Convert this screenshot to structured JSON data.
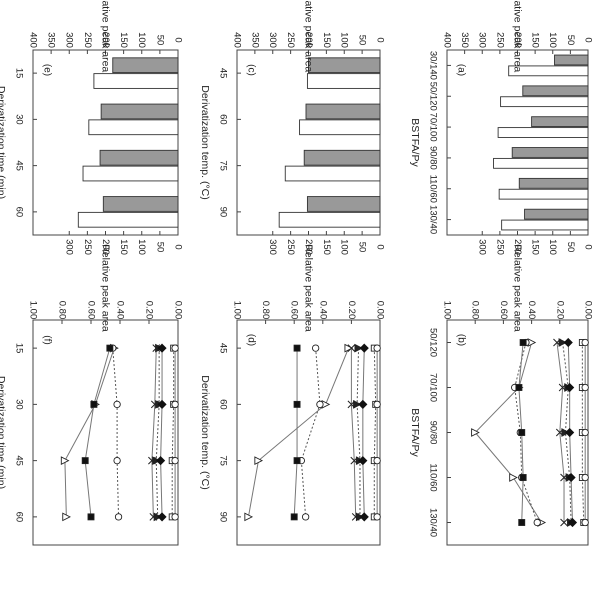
{
  "figure": {
    "note": "Six-panel figure, rendered rotated 90 degrees clockwise in the original image"
  },
  "chart_data": [
    {
      "panel": "(a)",
      "type": "bar",
      "xlabel": "BSTFA/Py",
      "ylabel": "Total relative peak area",
      "categories": [
        "30/140",
        "50/120",
        "70/100",
        "90/80",
        "110/60",
        "130/40"
      ],
      "ylim": [
        0,
        400
      ],
      "yticks": [
        0,
        50,
        100,
        150,
        200,
        250,
        300,
        350,
        400
      ],
      "series": [
        {
          "values": [
            95,
            185,
            160,
            215,
            195,
            180
          ],
          "fill": "#999999"
        },
        {
          "values": [
            225,
            248,
            255,
            268,
            252,
            245
          ],
          "fill": "#ffffff"
        }
      ]
    },
    {
      "panel": "(b)",
      "type": "line",
      "xlabel": "BSTFA/Py",
      "ylabel": "Relative peak area",
      "categories": [
        "50/120",
        "70/100",
        "90/80",
        "110/60",
        "130/40"
      ],
      "ylim": [
        0,
        1
      ],
      "yticks": [
        "0.00",
        "0.20",
        "0.40",
        "0.60",
        "0.80",
        "1.00"
      ],
      "series": [
        {
          "marker": "triangle-open",
          "dash": "none",
          "values": [
            0.4,
            0.49,
            0.8,
            0.53,
            0.33
          ]
        },
        {
          "marker": "circle-open",
          "dash": "dot",
          "values": [
            0.44,
            0.52,
            0.48,
            0.47,
            0.36
          ]
        },
        {
          "marker": "square-filled",
          "dash": "none",
          "values": [
            0.46,
            0.49,
            0.47,
            0.46,
            0.47
          ]
        },
        {
          "marker": "cross",
          "dash": "none",
          "values": [
            0.22,
            0.18,
            0.2,
            0.17,
            0.17
          ]
        },
        {
          "marker": "triangle-filled",
          "dash": "dot",
          "values": [
            0.18,
            0.14,
            0.16,
            0.13,
            0.12
          ]
        },
        {
          "marker": "diamond-filled",
          "dash": "none",
          "values": [
            0.14,
            0.13,
            0.13,
            0.12,
            0.11
          ]
        },
        {
          "marker": "square-open",
          "dash": "dot",
          "values": [
            0.04,
            0.04,
            0.04,
            0.04,
            0.03
          ]
        },
        {
          "marker": "circle-open",
          "dash": "none",
          "values": [
            0.02,
            0.02,
            0.02,
            0.02,
            0.02
          ]
        }
      ]
    },
    {
      "panel": "(c)",
      "type": "bar",
      "xlabel": "Derivatization temp. (°C)",
      "ylabel": "Total relative peak area",
      "categories": [
        "45",
        "60",
        "75",
        "90"
      ],
      "ylim": [
        0,
        400
      ],
      "yticks": [
        0,
        50,
        100,
        150,
        200,
        250,
        300,
        350,
        400
      ],
      "series": [
        {
          "values": [
            200,
            207,
            212,
            203
          ],
          "fill": "#999999"
        },
        {
          "values": [
            203,
            225,
            265,
            282
          ],
          "fill": "#ffffff"
        }
      ]
    },
    {
      "panel": "(d)",
      "type": "line",
      "xlabel": "Derivatization temp. (°C)",
      "ylabel": "Relative peak area",
      "categories": [
        "45",
        "60",
        "75",
        "90"
      ],
      "ylim": [
        0,
        1
      ],
      "yticks": [
        "0.00",
        "0.20",
        "0.40",
        "0.60",
        "0.80",
        "1.00"
      ],
      "series": [
        {
          "marker": "triangle-open",
          "dash": "none",
          "values": [
            0.22,
            0.38,
            0.85,
            0.92
          ]
        },
        {
          "marker": "circle-open",
          "dash": "dot",
          "values": [
            0.45,
            0.42,
            0.55,
            0.52
          ]
        },
        {
          "marker": "square-filled",
          "dash": "none",
          "values": [
            0.58,
            0.58,
            0.58,
            0.6
          ]
        },
        {
          "marker": "cross",
          "dash": "none",
          "values": [
            0.2,
            0.2,
            0.18,
            0.17
          ]
        },
        {
          "marker": "triangle-filled",
          "dash": "dot",
          "values": [
            0.15,
            0.16,
            0.14,
            0.14
          ]
        },
        {
          "marker": "diamond-filled",
          "dash": "none",
          "values": [
            0.11,
            0.12,
            0.12,
            0.11
          ]
        },
        {
          "marker": "square-open",
          "dash": "dot",
          "values": [
            0.04,
            0.03,
            0.04,
            0.04
          ]
        },
        {
          "marker": "circle-open",
          "dash": "none",
          "values": [
            0.02,
            0.02,
            0.02,
            0.02
          ]
        }
      ]
    },
    {
      "panel": "(e)",
      "type": "bar",
      "xlabel": "Derivatization time (min)",
      "ylabel": "Total relative peak area",
      "categories": [
        "15",
        "30",
        "45",
        "60"
      ],
      "ylim": [
        0,
        400
      ],
      "yticks": [
        0,
        50,
        100,
        150,
        200,
        250,
        300,
        350,
        400
      ],
      "series": [
        {
          "values": [
            180,
            212,
            215,
            206
          ],
          "fill": "#999999"
        },
        {
          "values": [
            232,
            246,
            262,
            275
          ],
          "fill": "#ffffff"
        }
      ]
    },
    {
      "panel": "(f)",
      "type": "line",
      "xlabel": "Derivatization time (min)",
      "ylabel": "Relative peak area",
      "categories": [
        "15",
        "30",
        "45",
        "60"
      ],
      "ylim": [
        0,
        1
      ],
      "yticks": [
        "0.00",
        "0.20",
        "0.40",
        "0.60",
        "0.80",
        "1.00"
      ],
      "series": [
        {
          "marker": "triangle-open",
          "dash": "none",
          "values": [
            0.44,
            0.57,
            0.78,
            0.77
          ]
        },
        {
          "marker": "circle-open",
          "dash": "dot",
          "values": [
            0.45,
            0.42,
            0.42,
            0.41
          ]
        },
        {
          "marker": "square-filled",
          "dash": "none",
          "values": [
            0.47,
            0.58,
            0.64,
            0.6
          ]
        },
        {
          "marker": "cross",
          "dash": "none",
          "values": [
            0.15,
            0.16,
            0.18,
            0.17
          ]
        },
        {
          "marker": "triangle-filled",
          "dash": "dot",
          "values": [
            0.13,
            0.13,
            0.15,
            0.14
          ]
        },
        {
          "marker": "diamond-filled",
          "dash": "none",
          "values": [
            0.11,
            0.11,
            0.12,
            0.11
          ]
        },
        {
          "marker": "square-open",
          "dash": "dot",
          "values": [
            0.03,
            0.03,
            0.04,
            0.04
          ]
        },
        {
          "marker": "circle-open",
          "dash": "none",
          "values": [
            0.02,
            0.02,
            0.02,
            0.02
          ]
        }
      ]
    }
  ]
}
